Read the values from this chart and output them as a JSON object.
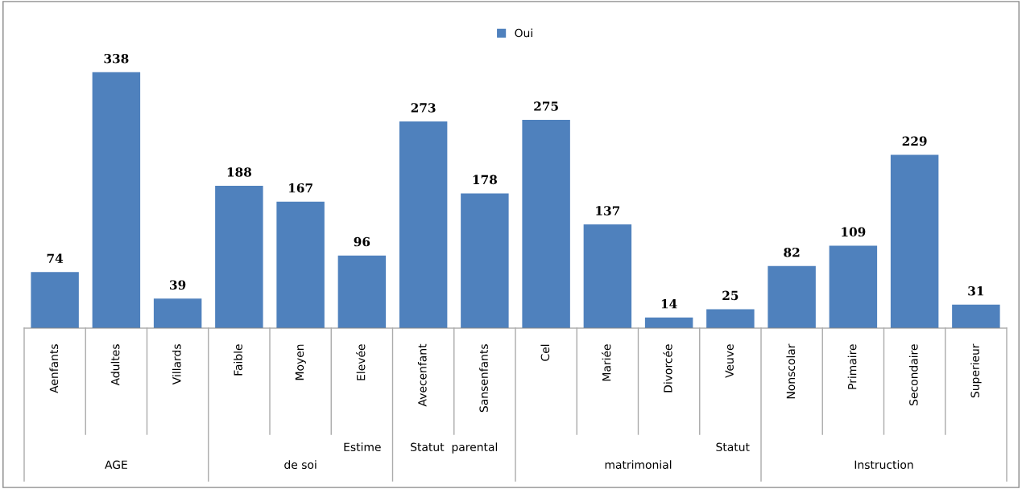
{
  "chart_data": {
    "type": "bar",
    "categories": [
      "Aenfants",
      "Adultes",
      "Villards",
      "Faible",
      "Moyen",
      "Elevée",
      "Avecenfant",
      "Sansenfants",
      "Cel",
      "Mariée",
      "Divorcée",
      "Veuve",
      "Nonscolar",
      "Primaire",
      "Secondaire",
      "Superieur"
    ],
    "series": [
      {
        "name": "Oui",
        "color": "#4f81bd",
        "values": [
          74,
          338,
          39,
          188,
          167,
          96,
          273,
          178,
          275,
          137,
          14,
          25,
          82,
          109,
          229,
          31
        ]
      }
    ],
    "data_labels": true,
    "legend": "top",
    "grid": false,
    "annotations": [
      "AGE",
      "Estime",
      "de soi",
      "Statut  parental",
      "Statut",
      "matrimonial",
      "Instruction"
    ]
  }
}
